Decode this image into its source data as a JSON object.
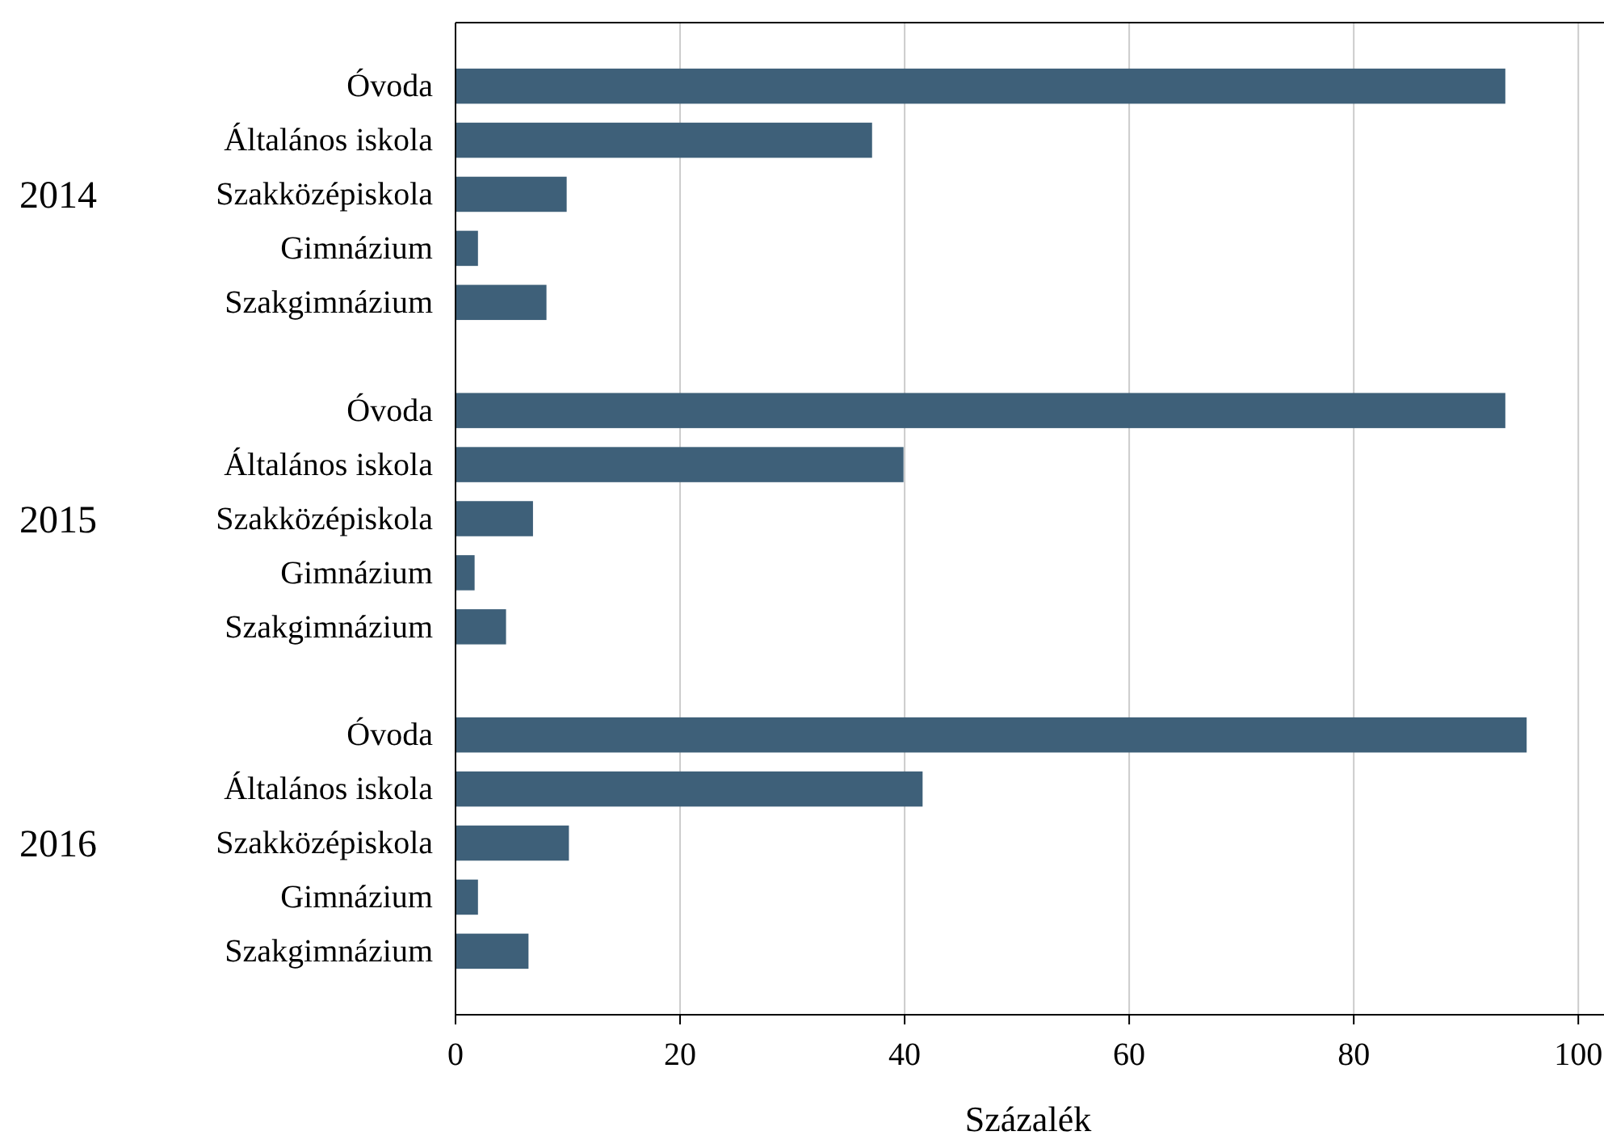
{
  "chart_data": {
    "type": "bar",
    "orientation": "horizontal",
    "categories": [
      "Óvoda",
      "Általános iskola",
      "Szakközépiskola",
      "Gimnázium",
      "Szakgimnázium",
      null,
      "Óvoda",
      "Általános iskola",
      "Szakközépiskola",
      "Gimnázium",
      "Szakgimnázium",
      null,
      "Óvoda",
      "Általános iskola",
      "Szakközépiskola",
      "Gimnázium",
      "Szakgimnázium"
    ],
    "values": [
      93.5,
      37.1,
      9.9,
      2.0,
      8.1,
      null,
      93.5,
      39.9,
      6.9,
      1.7,
      4.5,
      null,
      95.4,
      41.6,
      10.1,
      2.0,
      6.5
    ],
    "color": "#3e6079",
    "xlim": [
      0,
      102
    ],
    "xticks": [
      0,
      20,
      40,
      60,
      80,
      100
    ],
    "xlabel": "Százalék",
    "grid": "x",
    "annotations": [
      "2014",
      "2015",
      "2016"
    ]
  }
}
